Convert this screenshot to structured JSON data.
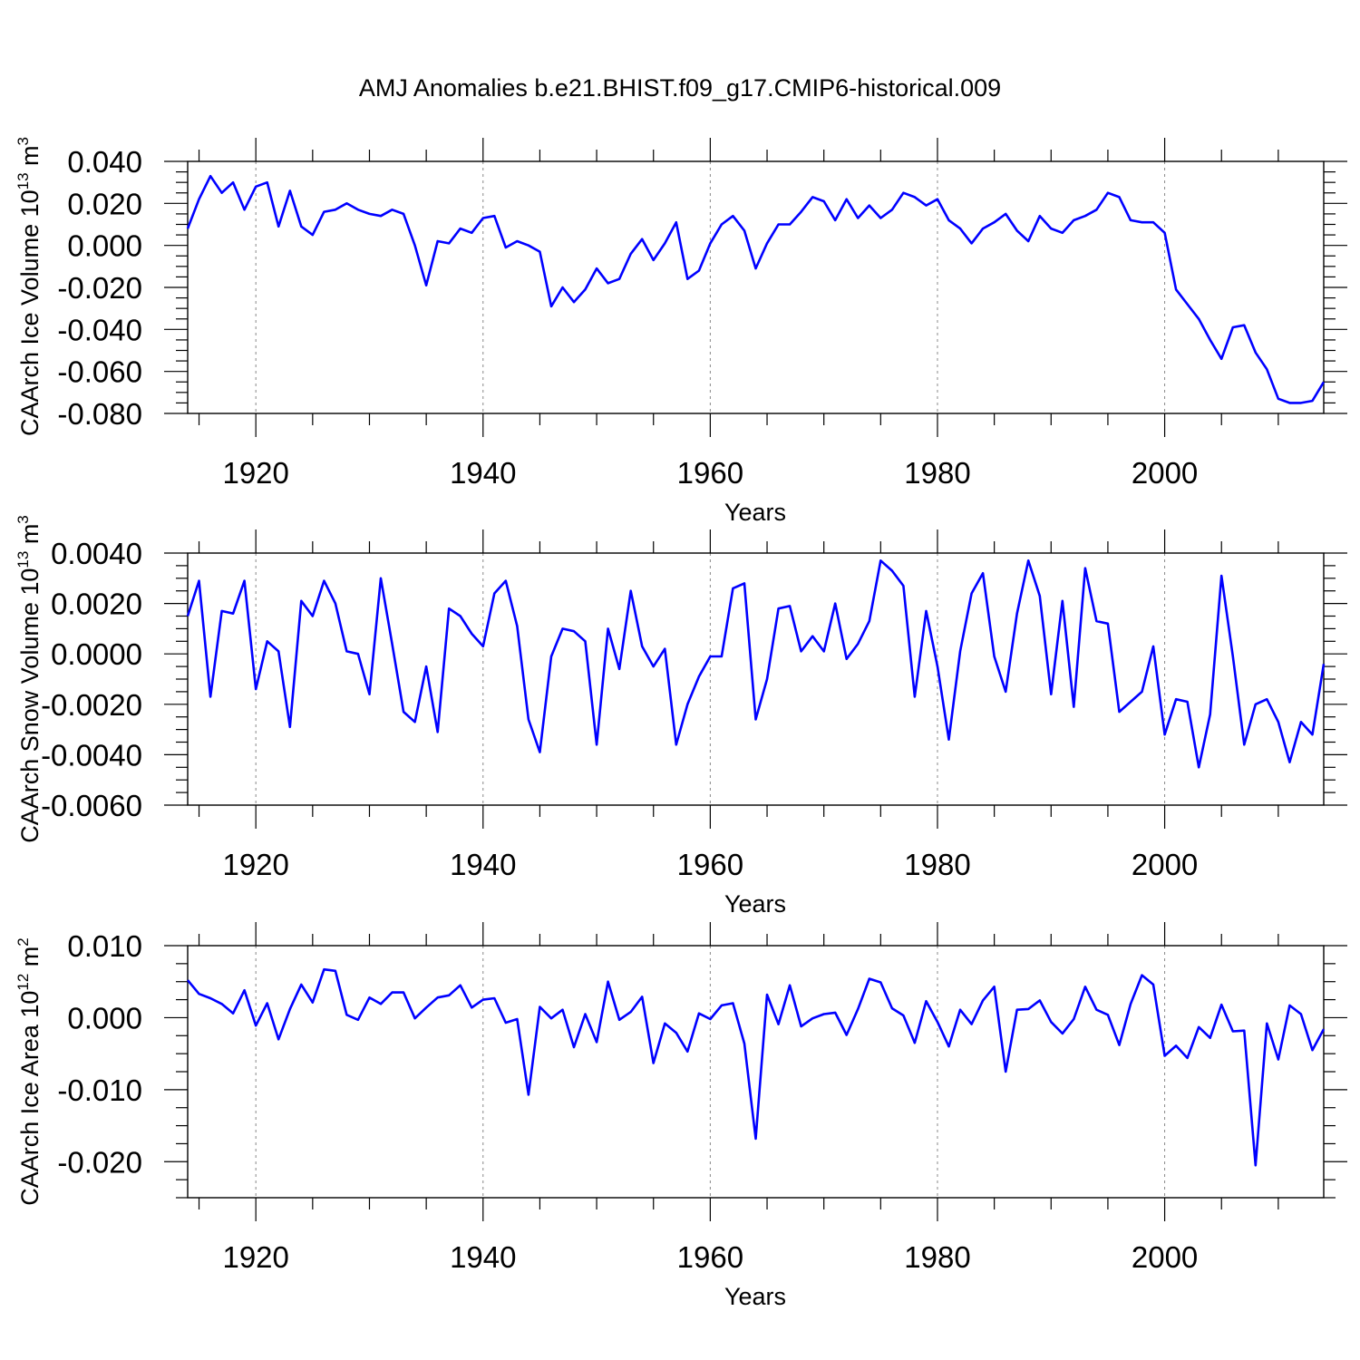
{
  "title": "AMJ Anomalies b.e21.BHIST.f09_g17.CMIP6-historical.009",
  "chart_data": [
    {
      "type": "line",
      "xlabel": "Years",
      "ylabel_main": "CAArch Ice Volume 10",
      "ylabel_sup": "13",
      "ylabel_unit": " m",
      "ylabel_unit_sup": "3",
      "xlim": [
        1914,
        2014
      ],
      "ylim": [
        -0.08,
        0.04
      ],
      "yticks": [
        0.04,
        0.02,
        0.0,
        -0.02,
        -0.04,
        -0.06,
        -0.08
      ],
      "ytick_labels": [
        "0.040",
        "0.020",
        "0.000",
        "-0.020",
        "-0.040",
        "-0.060",
        "-0.080"
      ],
      "xticks": [
        1920,
        1940,
        1960,
        1980,
        2000
      ],
      "xtick_labels": [
        "1920",
        "1940",
        "1960",
        "1980",
        "2000"
      ],
      "grid": "vertical dashed at major x ticks",
      "series_color": "#0000ff",
      "x_start": 1914,
      "values": [
        0.008,
        0.022,
        0.033,
        0.025,
        0.03,
        0.017,
        0.028,
        0.03,
        0.009,
        0.026,
        0.009,
        0.005,
        0.016,
        0.017,
        0.02,
        0.017,
        0.015,
        0.014,
        0.017,
        0.015,
        0.0,
        -0.019,
        0.002,
        0.001,
        0.008,
        0.006,
        0.013,
        0.014,
        -0.001,
        0.002,
        0.0,
        -0.003,
        -0.029,
        -0.02,
        -0.027,
        -0.021,
        -0.011,
        -0.018,
        -0.016,
        -0.004,
        0.003,
        -0.007,
        0.001,
        0.011,
        -0.016,
        -0.012,
        0.001,
        0.01,
        0.014,
        0.007,
        -0.011,
        0.001,
        0.01,
        0.01,
        0.016,
        0.023,
        0.021,
        0.012,
        0.022,
        0.013,
        0.019,
        0.013,
        0.017,
        0.025,
        0.023,
        0.019,
        0.022,
        0.012,
        0.008,
        0.001,
        0.008,
        0.011,
        0.015,
        0.007,
        0.002,
        0.014,
        0.008,
        0.006,
        0.012,
        0.014,
        0.017,
        0.025,
        0.023,
        0.012,
        0.011,
        0.011,
        0.006,
        -0.021,
        -0.028,
        -0.035,
        -0.045,
        -0.054,
        -0.039,
        -0.038,
        -0.051,
        -0.059,
        -0.073,
        -0.075,
        -0.075,
        -0.074,
        -0.065
      ]
    },
    {
      "type": "line",
      "xlabel": "Years",
      "ylabel_main": "CAArch Snow Volume 10",
      "ylabel_sup": "13",
      "ylabel_unit": " m",
      "ylabel_unit_sup": "3",
      "xlim": [
        1914,
        2014
      ],
      "ylim": [
        -0.006,
        0.004
      ],
      "yticks": [
        0.004,
        0.002,
        0.0,
        -0.002,
        -0.004,
        -0.006
      ],
      "ytick_labels": [
        "0.0040",
        "0.0020",
        "0.0000",
        "-0.0020",
        "-0.0040",
        "-0.0060"
      ],
      "xticks": [
        1920,
        1940,
        1960,
        1980,
        2000
      ],
      "xtick_labels": [
        "1920",
        "1940",
        "1960",
        "1980",
        "2000"
      ],
      "grid": "vertical dashed at major x ticks",
      "series_color": "#0000ff",
      "x_start": 1914,
      "values": [
        0.0015,
        0.0029,
        -0.0017,
        0.0017,
        0.0016,
        0.0029,
        -0.0014,
        0.0005,
        0.0001,
        -0.0029,
        0.0021,
        0.0015,
        0.0029,
        0.002,
        0.0001,
        0.0,
        -0.0016,
        0.003,
        0.0004,
        -0.0023,
        -0.0027,
        -0.0005,
        -0.0031,
        0.0018,
        0.0015,
        0.0008,
        0.0003,
        0.0024,
        0.0029,
        0.0011,
        -0.0026,
        -0.0039,
        -0.0001,
        0.001,
        0.0009,
        0.0005,
        -0.0036,
        0.001,
        -0.0006,
        0.0025,
        0.0003,
        -0.0005,
        0.0002,
        -0.0036,
        -0.002,
        -0.0009,
        -0.0001,
        -0.0001,
        0.0026,
        0.0028,
        -0.0026,
        -0.001,
        0.0018,
        0.0019,
        0.0001,
        0.0007,
        0.0001,
        0.002,
        -0.0002,
        0.0004,
        0.0013,
        0.0037,
        0.0033,
        0.0027,
        -0.0017,
        0.0017,
        -0.0005,
        -0.0034,
        0.0001,
        0.0024,
        0.0032,
        -0.0001,
        -0.0015,
        0.0016,
        0.0037,
        0.0023,
        -0.0016,
        0.0021,
        -0.0021,
        0.0034,
        0.0013,
        0.0012,
        -0.0023,
        -0.0019,
        -0.0015,
        0.0003,
        -0.0032,
        -0.0018,
        -0.0019,
        -0.0045,
        -0.0024,
        0.0031,
        -0.0001,
        -0.0036,
        -0.002,
        -0.0018,
        -0.0027,
        -0.0043,
        -0.0027,
        -0.0032,
        -0.0004
      ]
    },
    {
      "type": "line",
      "xlabel": "Years",
      "ylabel_main": "CAArch Ice Area 10",
      "ylabel_sup": "12",
      "ylabel_unit": " m",
      "ylabel_unit_sup": "2",
      "xlim": [
        1914,
        2014
      ],
      "ylim": [
        -0.025,
        0.01
      ],
      "yticks": [
        0.01,
        0.0,
        -0.01,
        -0.02
      ],
      "ytick_labels": [
        "0.010",
        "0.000",
        "-0.010",
        "-0.020"
      ],
      "xticks": [
        1920,
        1940,
        1960,
        1980,
        2000
      ],
      "xtick_labels": [
        "1920",
        "1940",
        "1960",
        "1980",
        "2000"
      ],
      "grid": "vertical dashed at major x ticks",
      "series_color": "#0000ff",
      "x_start": 1914,
      "values": [
        0.0052,
        0.0033,
        0.0027,
        0.0019,
        0.0006,
        0.0038,
        -0.0011,
        0.002,
        -0.003,
        0.0012,
        0.0046,
        0.0021,
        0.0067,
        0.0065,
        0.0004,
        -0.0003,
        0.0028,
        0.0019,
        0.0035,
        0.0035,
        -0.0001,
        0.0014,
        0.0028,
        0.0031,
        0.0045,
        0.0014,
        0.0025,
        0.0027,
        -0.0007,
        -0.0002,
        -0.0107,
        0.0015,
        -0.0001,
        0.0011,
        -0.0041,
        0.0005,
        -0.0034,
        0.005,
        -0.0003,
        0.0008,
        0.0029,
        -0.0063,
        -0.0008,
        -0.0021,
        -0.0047,
        0.0006,
        -0.0002,
        0.0017,
        0.002,
        -0.0036,
        -0.0168,
        0.0032,
        -0.0009,
        0.0045,
        -0.0012,
        -0.0001,
        0.0005,
        0.0007,
        -0.0024,
        0.0012,
        0.0054,
        0.0049,
        0.0013,
        0.0003,
        -0.0035,
        0.0023,
        -0.0006,
        -0.004,
        0.0011,
        -0.0009,
        0.0024,
        0.0043,
        -0.0075,
        0.0011,
        0.0012,
        0.0024,
        -0.0006,
        -0.0022,
        -0.0002,
        0.0043,
        0.0011,
        0.0004,
        -0.0038,
        0.0019,
        0.0059,
        0.0046,
        -0.0053,
        -0.0039,
        -0.0056,
        -0.0013,
        -0.0028,
        0.0018,
        -0.0019,
        -0.0018,
        -0.0205,
        -0.0008,
        -0.0058,
        0.0017,
        0.0005,
        -0.0045,
        -0.0016
      ]
    }
  ]
}
